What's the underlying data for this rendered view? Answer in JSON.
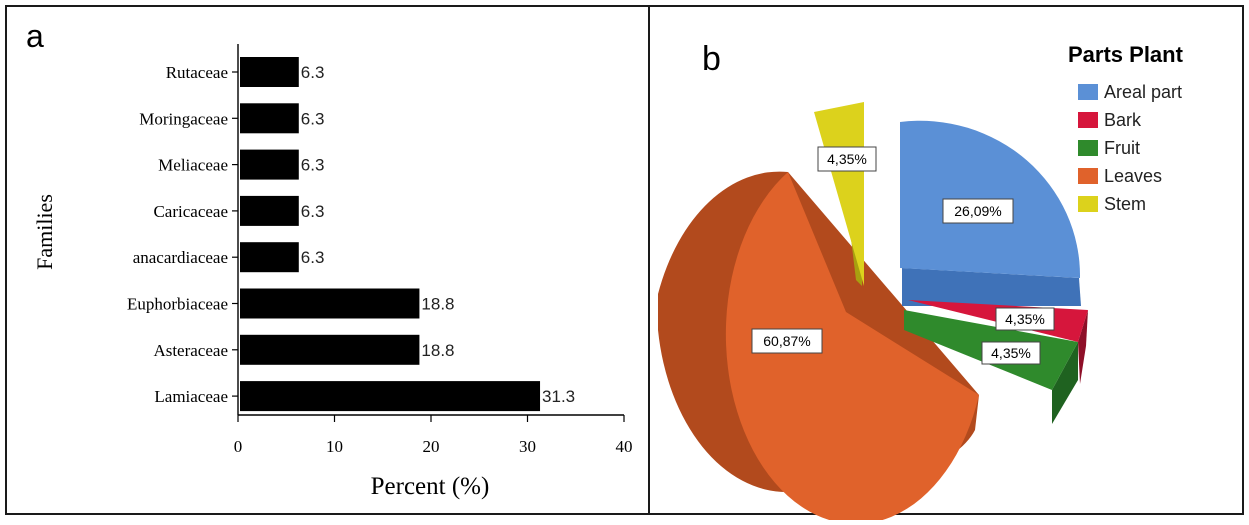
{
  "panels": {
    "a": {
      "label": "a"
    },
    "b": {
      "label": "b"
    }
  },
  "colors": {
    "bar": "#000000",
    "border": "#1a1a1a",
    "Areal part": "#5b90d6",
    "Bark": "#d6163c",
    "Fruit": "#2f8a2c",
    "Leaves": "#e0622b",
    "Stem": "#dcd21c"
  },
  "chart_data": [
    {
      "type": "bar",
      "orientation": "horizontal",
      "panel": "a",
      "title": "",
      "categories": [
        "Rutaceae",
        "Moringaceae",
        "Meliaceae",
        "Caricaceae",
        "anacardiaceae",
        "Euphorbiaceae",
        "Asteraceae",
        "Lamiaceae"
      ],
      "values": [
        6.3,
        6.3,
        6.3,
        6.3,
        6.3,
        18.8,
        18.8,
        31.3
      ],
      "value_labels": [
        "6.3",
        "6.3",
        "6.3",
        "6.3",
        "6.3",
        "18.8",
        "18.8",
        "31.3"
      ],
      "xlabel": "Percent (%)",
      "ylabel": "Families",
      "xlim": [
        0,
        40
      ],
      "xticks": [
        "0",
        "10",
        "20",
        "30",
        "40"
      ],
      "grid": false
    },
    {
      "type": "pie",
      "panel": "b",
      "style": "3d-exploded",
      "title": "Parts Plant",
      "legend_position": "top-right",
      "slices": [
        {
          "label": "Areal part",
          "value": 26.09,
          "text": "26,09%"
        },
        {
          "label": "Bark",
          "value": 4.35,
          "text": "4,35%"
        },
        {
          "label": "Fruit",
          "value": 4.35,
          "text": "4,35%"
        },
        {
          "label": "Leaves",
          "value": 60.87,
          "text": "60,87%"
        },
        {
          "label": "Stem",
          "value": 4.35,
          "text": "4,35%"
        }
      ]
    }
  ]
}
